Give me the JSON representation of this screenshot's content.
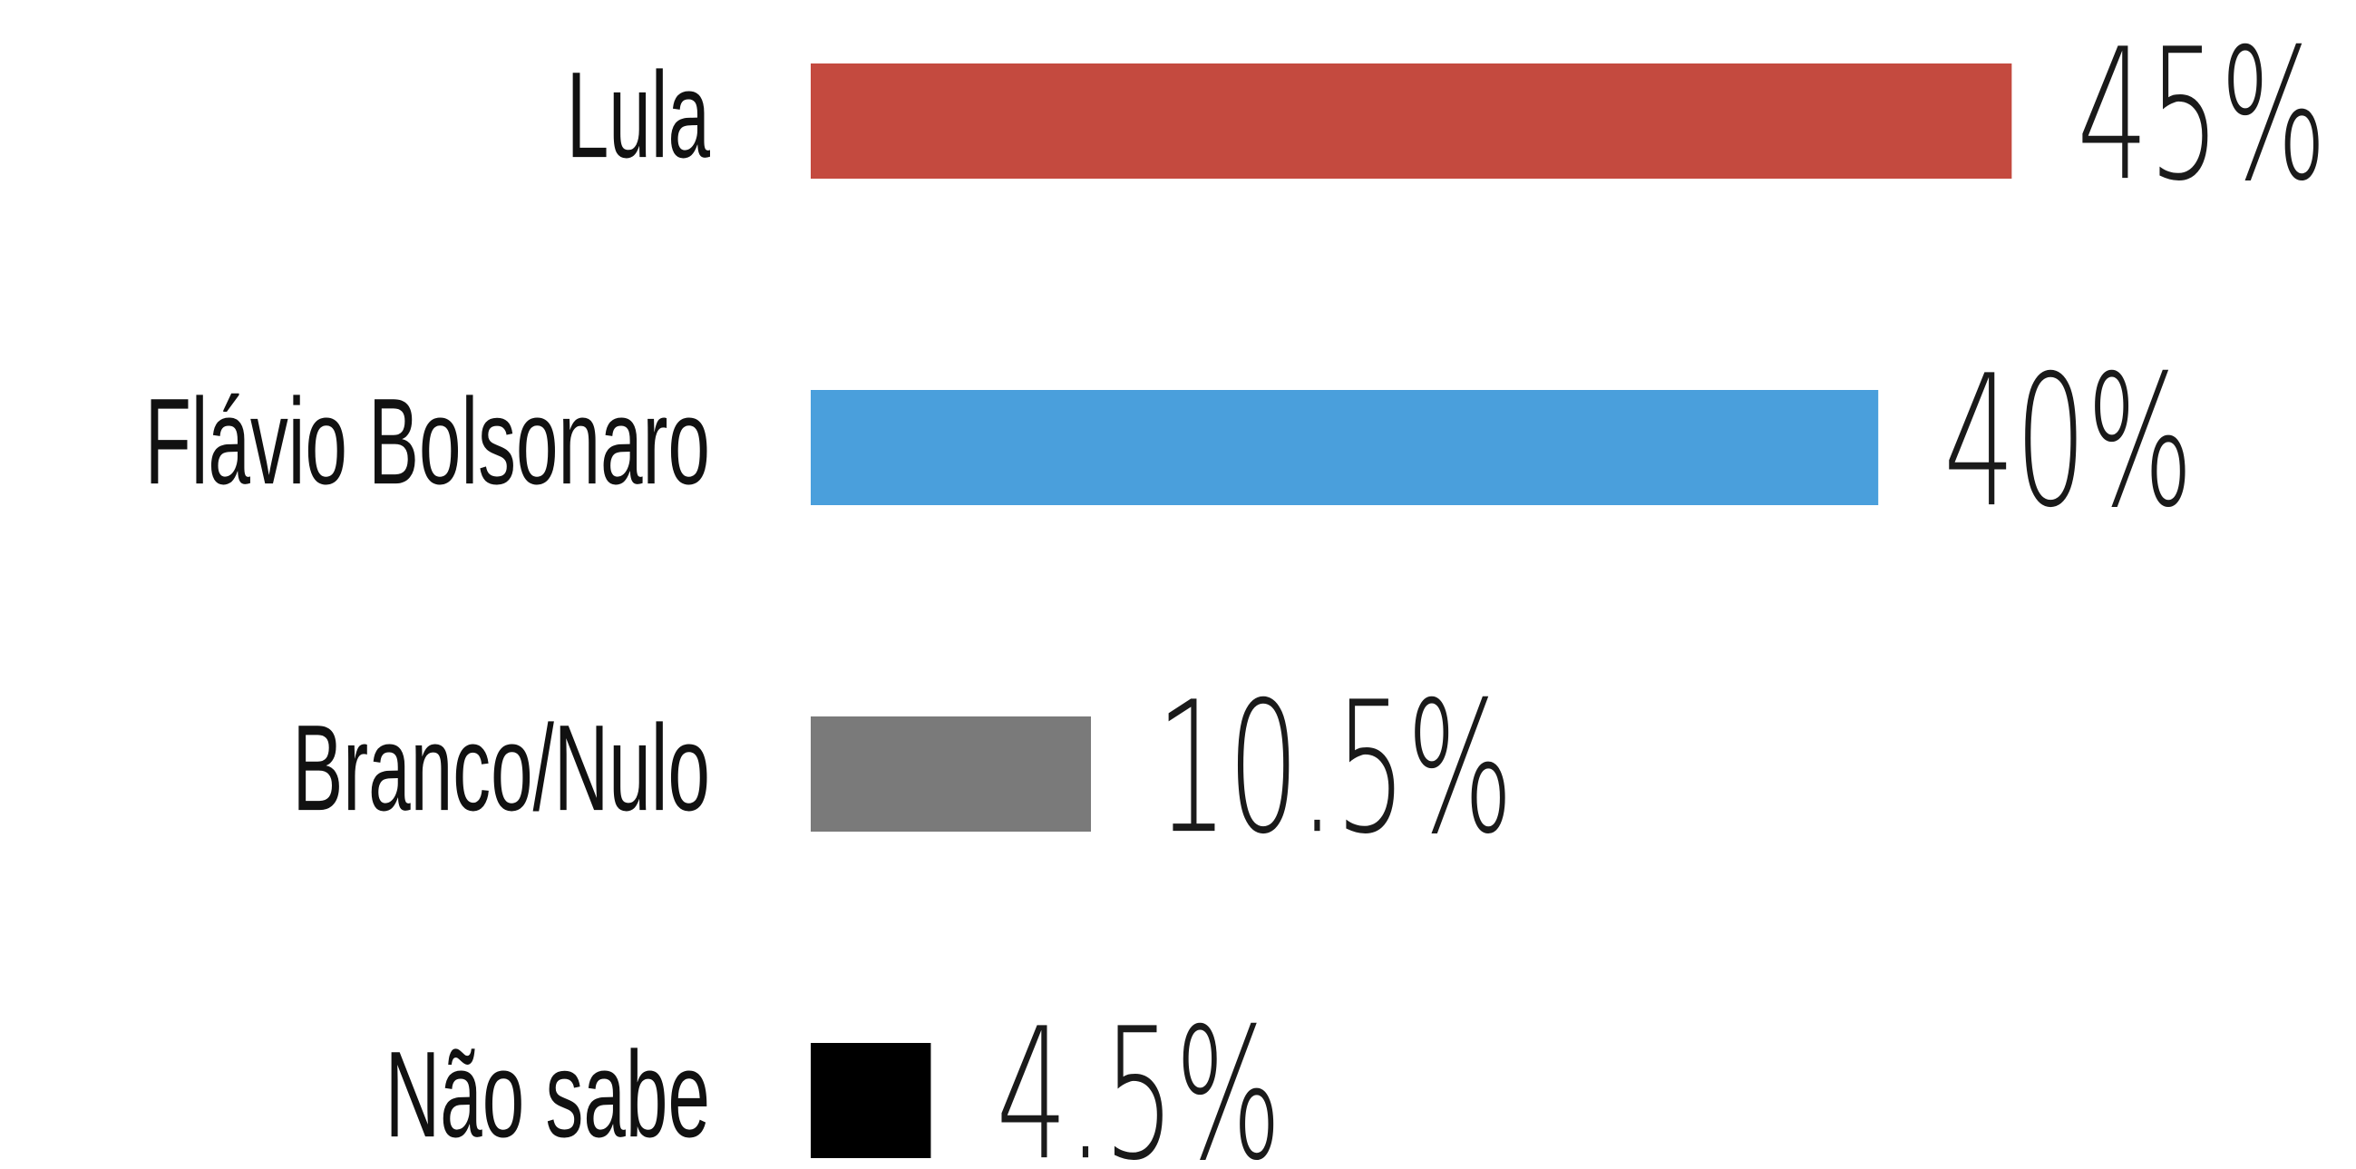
{
  "chart_data": {
    "type": "bar",
    "orientation": "horizontal",
    "categories": [
      "Lula",
      "Flávio Bolsonaro",
      "Branco/Nulo",
      "Não sabe"
    ],
    "values": [
      45,
      40,
      10.5,
      4.5
    ],
    "value_labels": [
      "45%",
      "40%",
      "10.5%",
      "4.5%"
    ],
    "colors": [
      "#c44a3f",
      "#4a9fdc",
      "#7a7a7a",
      "#000000"
    ]
  }
}
